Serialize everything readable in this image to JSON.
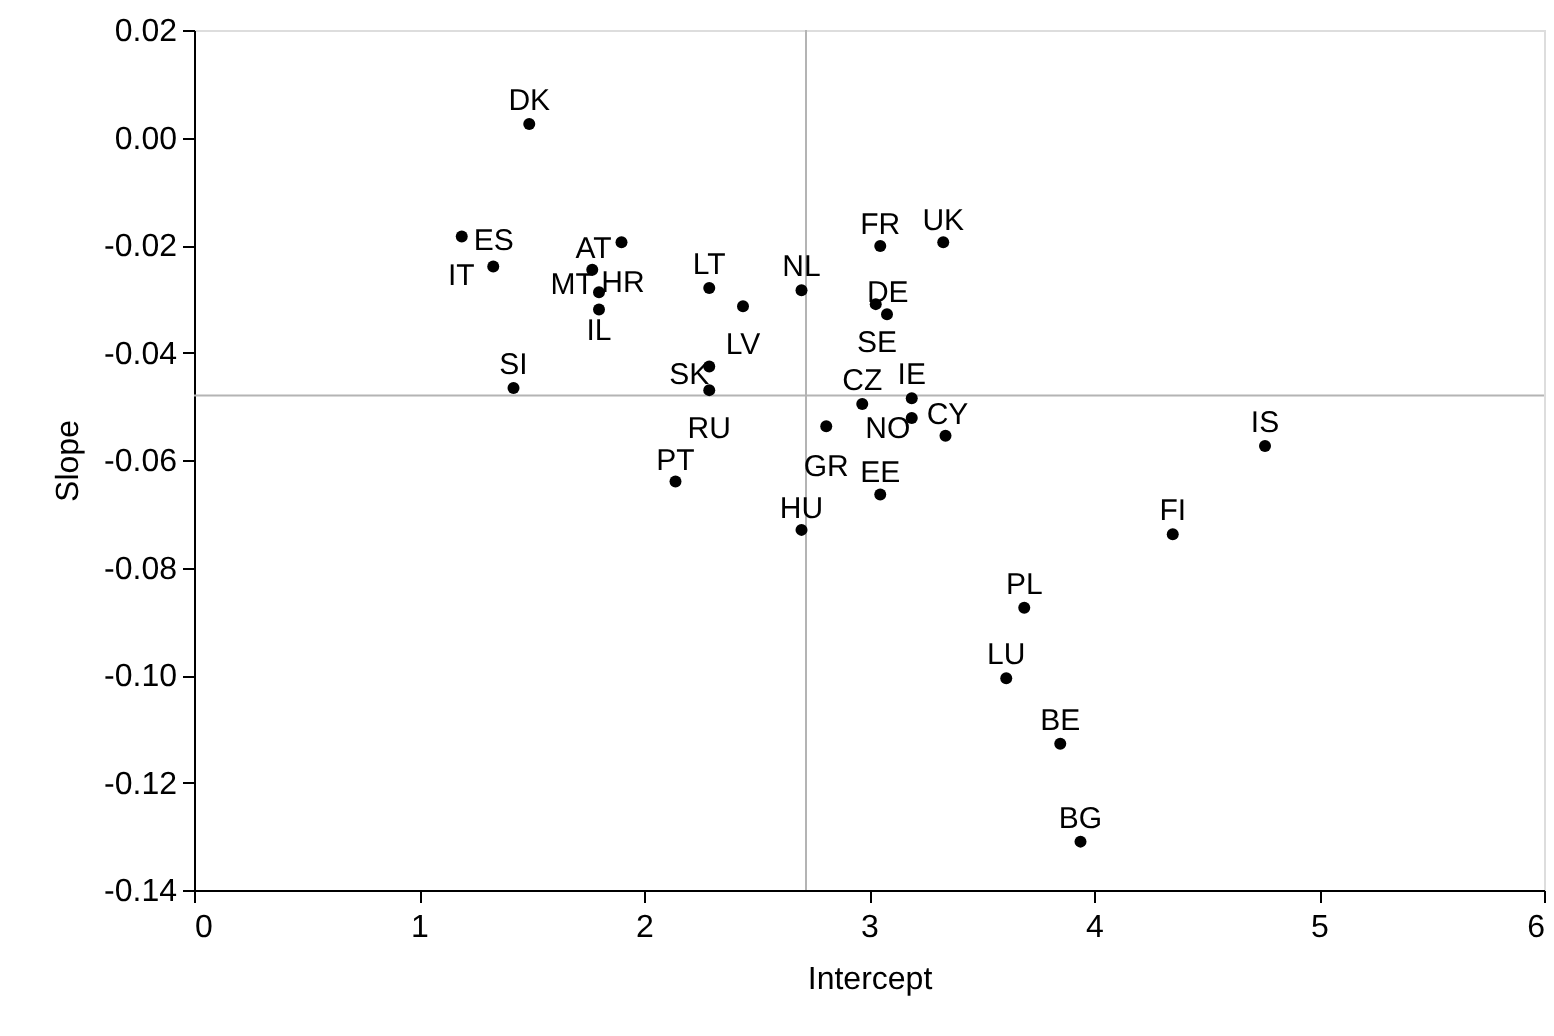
{
  "chart_data": {
    "type": "scatter",
    "xlabel": "Intercept",
    "ylabel": "Slope",
    "xlim": [
      0,
      6
    ],
    "xticks": [
      0,
      1,
      2,
      3,
      4,
      5,
      6
    ],
    "ylim": [
      -0.14,
      0.02
    ],
    "yticks": [
      {
        "value": -0.14,
        "label": "-0.14"
      },
      {
        "value": -0.12,
        "label": "-0.12"
      },
      {
        "value": -0.1,
        "label": "-0.10"
      },
      {
        "value": -0.08,
        "label": "-0.08"
      },
      {
        "value": -0.06,
        "label": "-0.06"
      },
      {
        "value": -0.04,
        "label": "-0.04"
      },
      {
        "value": -0.02,
        "label": "-0.02"
      },
      {
        "value": 0,
        "label": "0.00"
      },
      {
        "value": 0.02,
        "label": "0.02"
      }
    ],
    "grid": false,
    "marker": "circle",
    "series": [
      {
        "color": "#000000",
        "x": [
          1.49,
          1.19,
          1.33,
          1.9,
          1.77,
          1.8,
          1.8,
          2.29,
          2.44,
          2.7,
          2.29,
          2.29,
          1.42,
          2.14,
          2.7,
          2.81,
          2.97,
          3.05,
          3.33,
          3.03,
          3.08,
          3.19,
          3.19,
          3.34,
          3.05,
          4.76,
          4.35,
          3.69,
          3.61,
          3.85,
          3.94
        ],
        "values": [
          0.0025,
          -0.0184,
          -0.024,
          -0.0195,
          -0.0246,
          -0.0288,
          -0.032,
          -0.028,
          -0.0314,
          -0.0284,
          -0.0426,
          -0.047,
          -0.0466,
          -0.064,
          -0.073,
          -0.0537,
          -0.0496,
          -0.0202,
          -0.0195,
          -0.031,
          -0.0329,
          -0.0485,
          -0.0522,
          -0.0555,
          -0.0664,
          -0.0574,
          -0.0738,
          -0.0875,
          -0.1006,
          -0.1128,
          -0.131
        ]
      }
    ],
    "annotations": [
      {
        "text": "DK",
        "x": 1.49,
        "y": 0.0025
      },
      {
        "text": "ES",
        "x": 1.19,
        "y": -0.0184
      },
      {
        "text": "IT",
        "x": 1.33,
        "y": -0.024
      },
      {
        "text": "AT",
        "x": 1.9,
        "y": -0.0195
      },
      {
        "text": "MT",
        "x": 1.77,
        "y": -0.0246
      },
      {
        "text": "HR",
        "x": 1.8,
        "y": -0.0288
      },
      {
        "text": "IL",
        "x": 1.8,
        "y": -0.032
      },
      {
        "text": "LT",
        "x": 2.29,
        "y": -0.028
      },
      {
        "text": "LV",
        "x": 2.44,
        "y": -0.0314
      },
      {
        "text": "NL",
        "x": 2.7,
        "y": -0.0284
      },
      {
        "text": "SK",
        "x": 2.29,
        "y": -0.0426
      },
      {
        "text": "RU",
        "x": 2.29,
        "y": -0.047
      },
      {
        "text": "SI",
        "x": 1.42,
        "y": -0.0466
      },
      {
        "text": "PT",
        "x": 2.14,
        "y": -0.064
      },
      {
        "text": "HU",
        "x": 2.7,
        "y": -0.073
      },
      {
        "text": "GR",
        "x": 2.81,
        "y": -0.0537
      },
      {
        "text": "CZ",
        "x": 2.97,
        "y": -0.0496
      },
      {
        "text": "FR",
        "x": 3.05,
        "y": -0.0202
      },
      {
        "text": "UK",
        "x": 3.33,
        "y": -0.0195
      },
      {
        "text": "DE",
        "x": 3.03,
        "y": -0.031
      },
      {
        "text": "SE",
        "x": 3.08,
        "y": -0.0329
      },
      {
        "text": "IE",
        "x": 3.19,
        "y": -0.0485
      },
      {
        "text": "NO",
        "x": 3.19,
        "y": -0.0522
      },
      {
        "text": "CY",
        "x": 3.34,
        "y": -0.0555
      },
      {
        "text": "EE",
        "x": 3.05,
        "y": -0.0664
      },
      {
        "text": "IS",
        "x": 4.76,
        "y": -0.0574
      },
      {
        "text": "FI",
        "x": 4.35,
        "y": -0.0738
      },
      {
        "text": "PL",
        "x": 3.69,
        "y": -0.0875
      },
      {
        "text": "LU",
        "x": 3.61,
        "y": -0.1006
      },
      {
        "text": "BE",
        "x": 3.85,
        "y": -0.1128
      },
      {
        "text": "BG",
        "x": 3.94,
        "y": -0.131
      }
    ],
    "ref_lines": [
      {
        "axis": "x",
        "value": 2.72,
        "color": "#b4b4b4"
      },
      {
        "axis": "y",
        "value": -0.048,
        "color": "#b4b4b4"
      }
    ]
  }
}
